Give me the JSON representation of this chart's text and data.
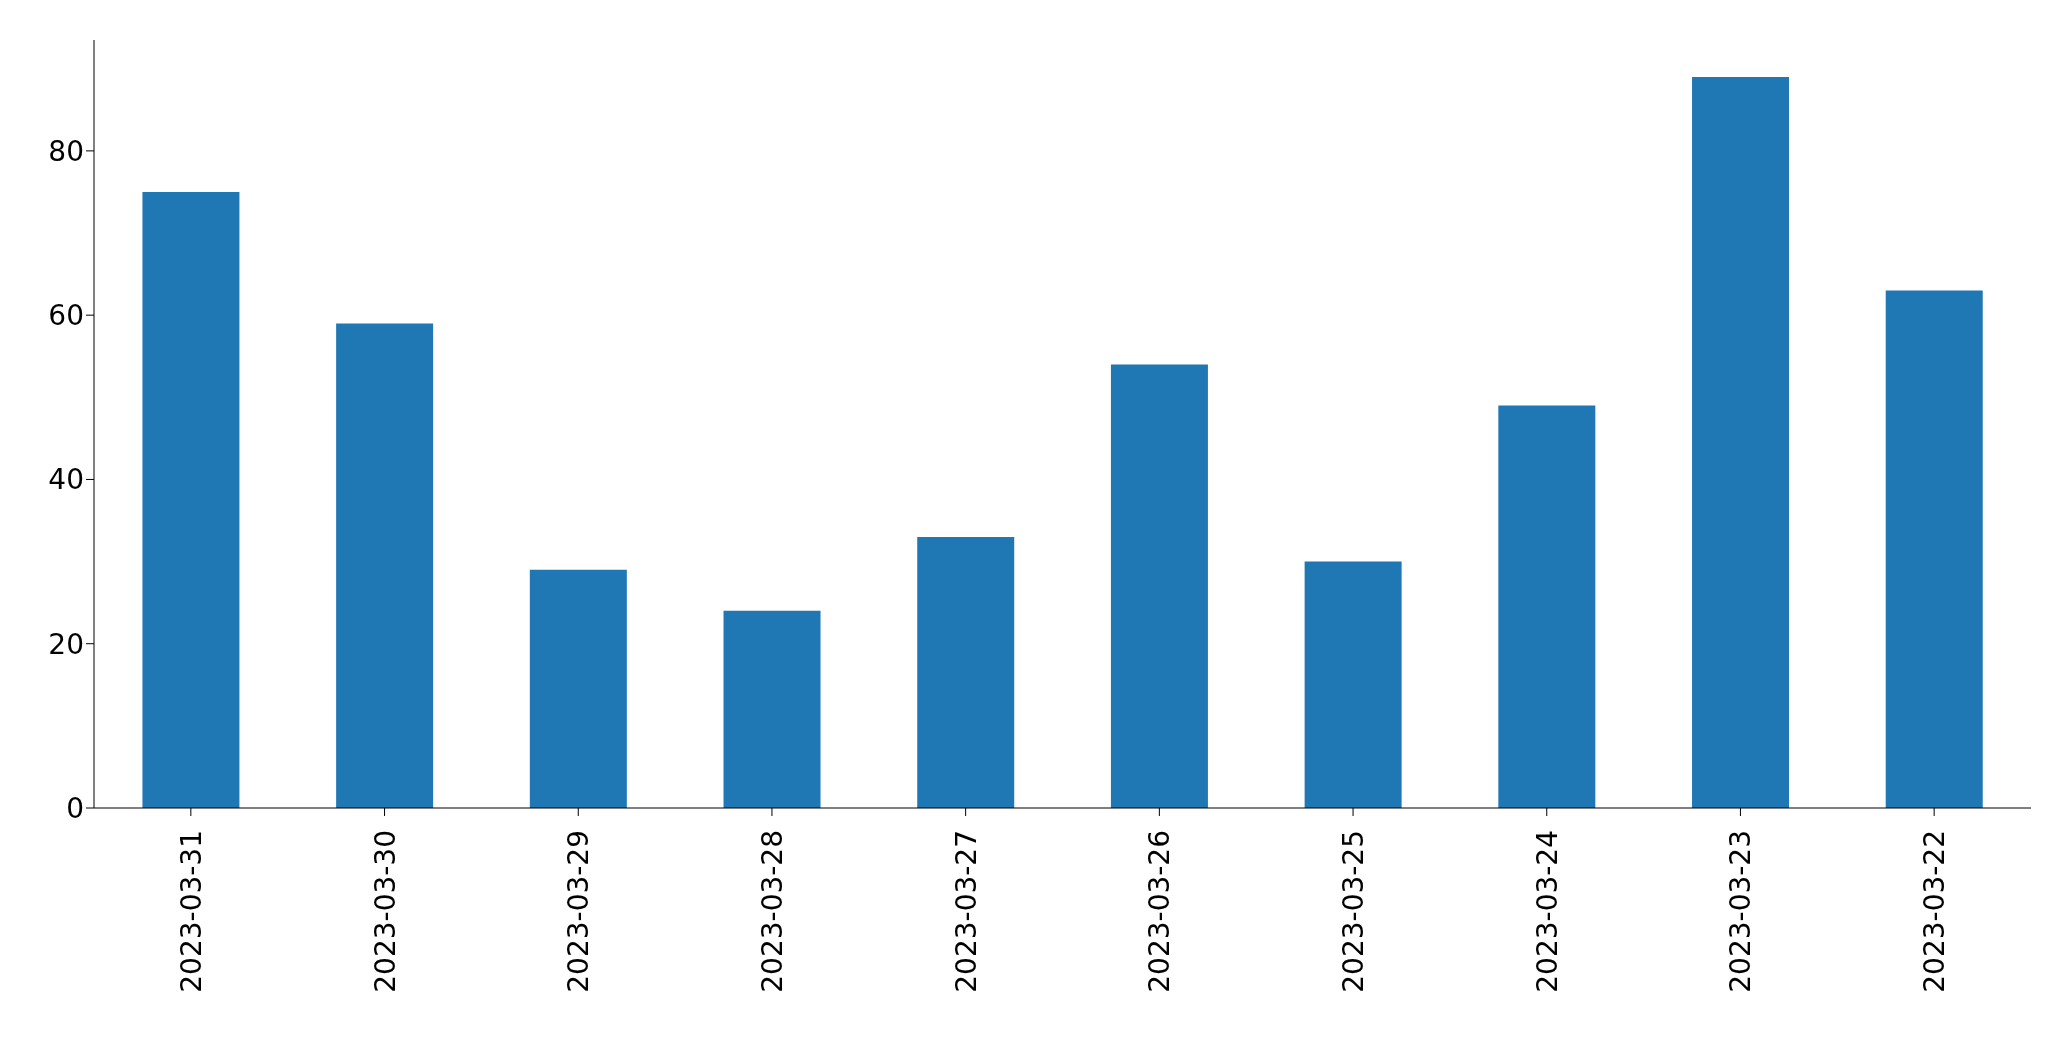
{
  "chart_data": {
    "type": "bar",
    "categories": [
      "2023-03-31",
      "2023-03-30",
      "2023-03-29",
      "2023-03-28",
      "2023-03-27",
      "2023-03-26",
      "2023-03-25",
      "2023-03-24",
      "2023-03-23",
      "2023-03-22"
    ],
    "values": [
      75,
      59,
      29,
      24,
      33,
      54,
      30,
      49,
      89,
      63
    ],
    "color": "#1f77b4",
    "ylim": [
      0,
      93.5
    ],
    "yticks": [
      0,
      20,
      40,
      60,
      80
    ],
    "grid": false,
    "legend": false
  }
}
